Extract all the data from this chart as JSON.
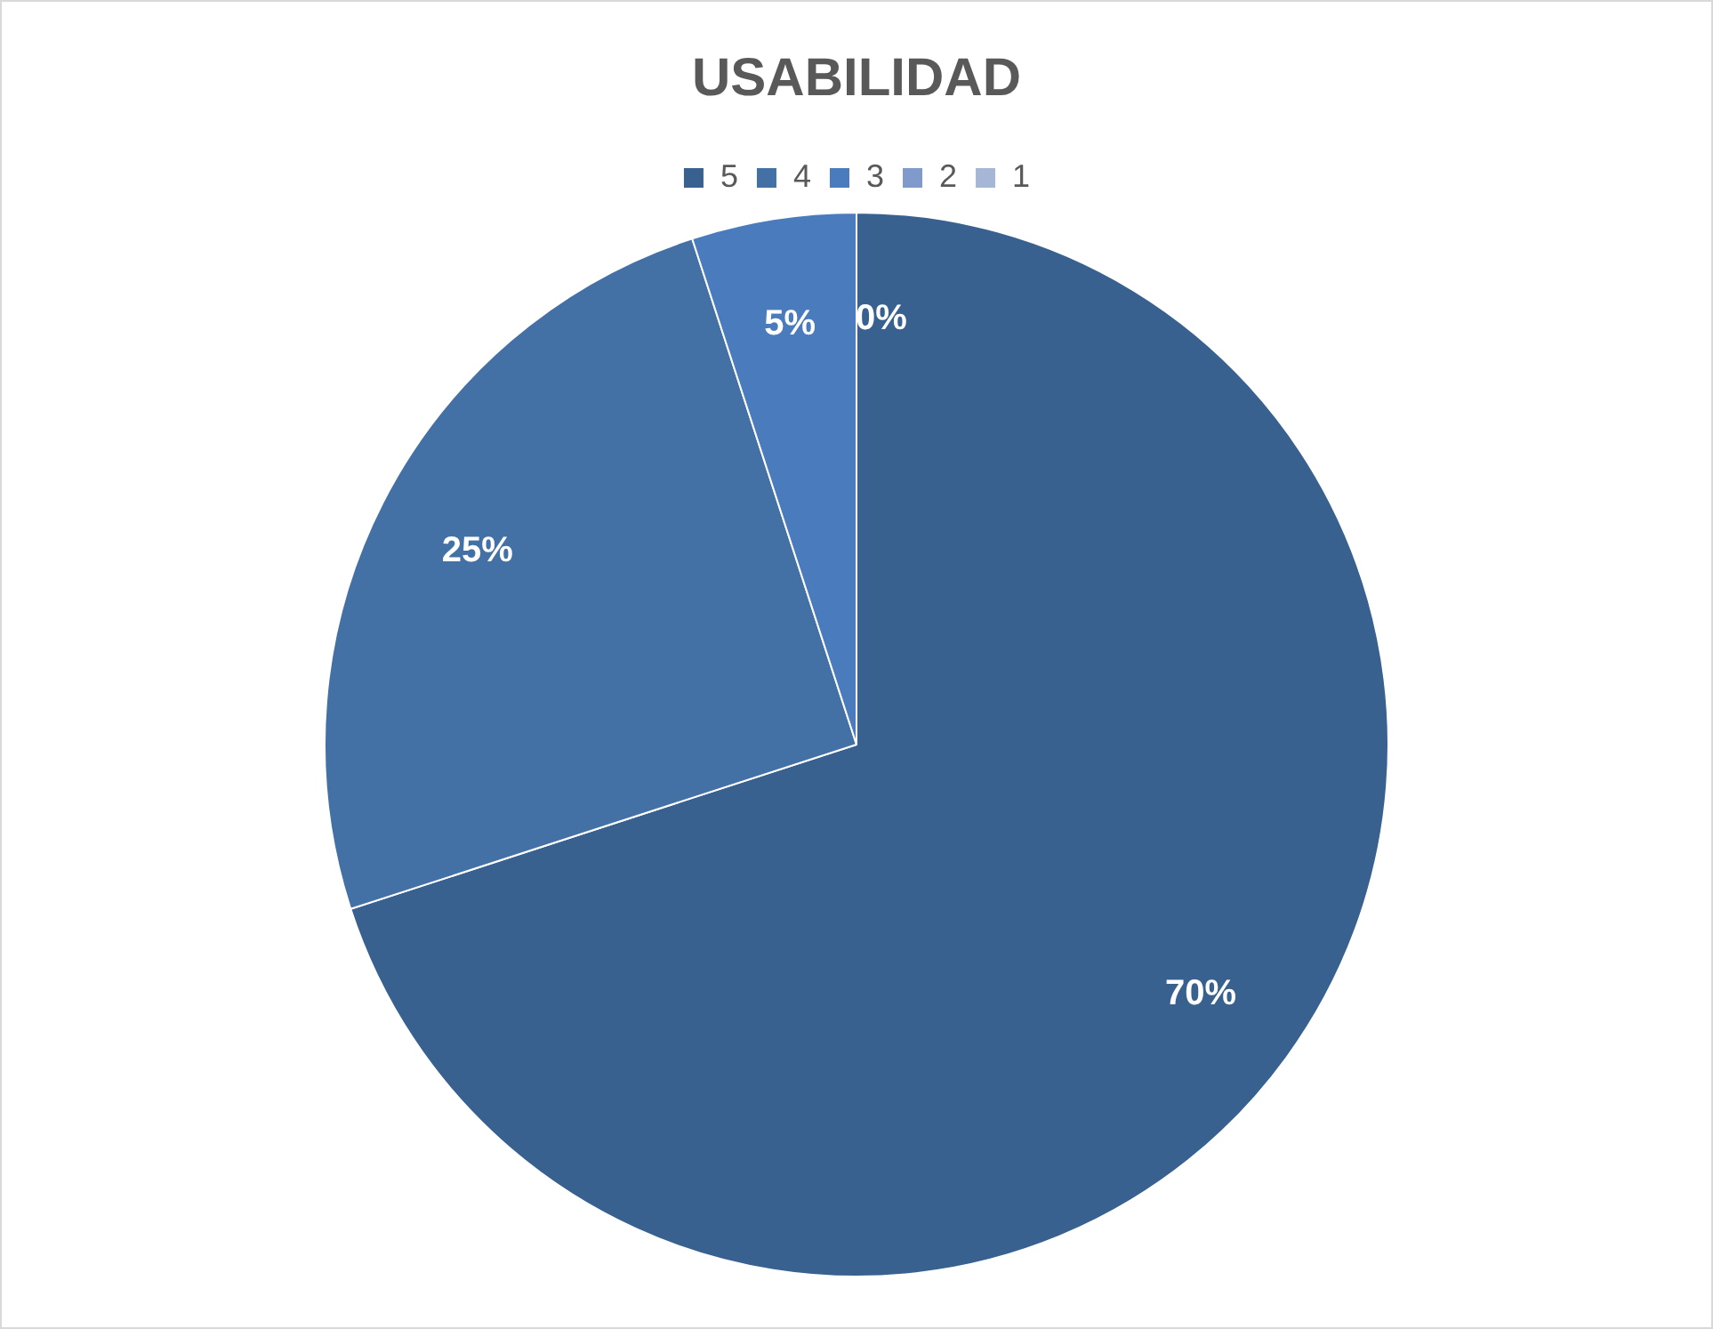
{
  "chart_data": {
    "type": "pie",
    "title": "USABILIDAD",
    "categories": [
      "5",
      "4",
      "3",
      "2",
      "1"
    ],
    "values": [
      70,
      25,
      5,
      0,
      0
    ],
    "colors": [
      "#38618f",
      "#4371a6",
      "#4a7bbd",
      "#7f9acb",
      "#a6b6d6"
    ],
    "value_labels": [
      "70%",
      "25%",
      "5%",
      "0%",
      null
    ],
    "legend": "top"
  }
}
